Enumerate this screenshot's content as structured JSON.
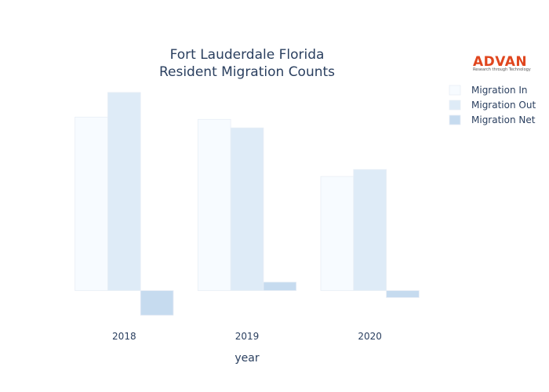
{
  "chart_data": {
    "type": "bar",
    "title_lines": [
      "Fort Lauderdale Florida",
      "Resident Migration Counts"
    ],
    "xlabel": "year",
    "ylabel": "",
    "categories": [
      "2018",
      "2019",
      "2020"
    ],
    "series": [
      {
        "name": "Migration In",
        "values": [
          225,
          222,
          148
        ],
        "color": "#f7fbff"
      },
      {
        "name": "Migration Out",
        "values": [
          257,
          211,
          157
        ],
        "color": "#deebf7"
      },
      {
        "name": "Migration Net",
        "values": [
          -32,
          11,
          -9
        ],
        "color": "#c6dbef"
      }
    ],
    "ylim": [
      -40,
      265
    ],
    "grid": false,
    "y_axis_visible": false,
    "legend_position": "top-right"
  },
  "logo": {
    "word": "ADVAN",
    "tagline": "Research through Technology",
    "color": "#e0461e"
  }
}
